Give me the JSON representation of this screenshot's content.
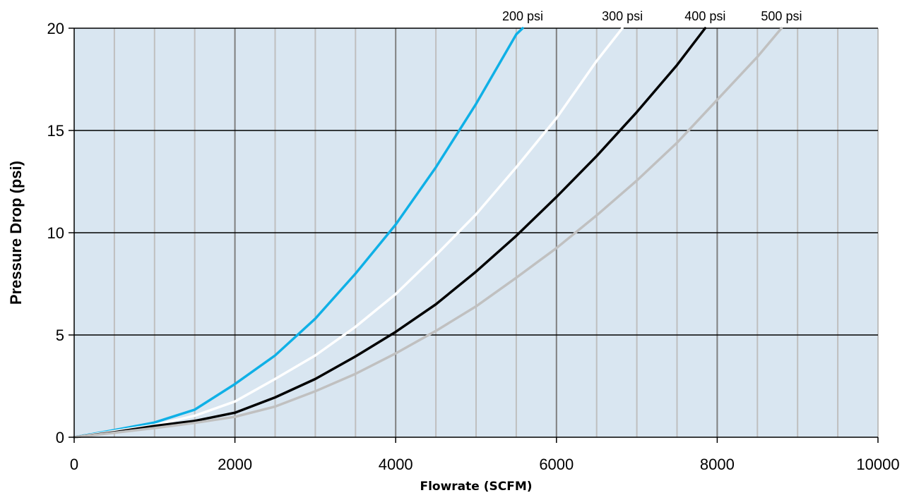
{
  "chart_data": {
    "type": "line",
    "title": "",
    "xlabel": "Flowrate (SCFM)",
    "ylabel": "Pressure Drop (psi)",
    "xlim": [
      0,
      10000
    ],
    "ylim": [
      0,
      20
    ],
    "x_ticks": [
      0,
      2000,
      4000,
      6000,
      8000,
      10000
    ],
    "x_tick_labels": [
      "0",
      "2000",
      "4000",
      "6000",
      "8000",
      "10000"
    ],
    "y_ticks": [
      0,
      5,
      10,
      15,
      20
    ],
    "y_tick_labels": [
      "0",
      "5",
      "10",
      "15",
      "20"
    ],
    "minor_x_gridlines_every": 500,
    "grid": true,
    "plot_background": "#d9e6f1",
    "major_vertical_grid_color": "#7f7f7f",
    "minor_vertical_grid_color": "#bfbfbf",
    "horizontal_grid_color": "#000000",
    "legend": "none",
    "series": [
      {
        "name": "200 psi",
        "color": "#0fb0e6",
        "x": [
          0,
          500,
          1000,
          1500,
          2000,
          2500,
          3000,
          3500,
          4000,
          4500,
          5000,
          5500,
          5580
        ],
        "y": [
          0,
          0.35,
          0.72,
          1.35,
          2.6,
          4.0,
          5.8,
          8.0,
          10.4,
          13.2,
          16.3,
          19.7,
          20
        ]
      },
      {
        "name": "300 psi",
        "color": "#ffffff",
        "x": [
          0,
          500,
          1000,
          1500,
          2000,
          2500,
          3000,
          3500,
          4000,
          4500,
          5000,
          5500,
          6000,
          6500,
          6820
        ],
        "y": [
          0,
          0.3,
          0.6,
          1.05,
          1.75,
          2.85,
          4.0,
          5.4,
          7.0,
          8.9,
          10.9,
          13.2,
          15.6,
          18.4,
          20
        ]
      },
      {
        "name": "400 psi",
        "color": "#000000",
        "x": [
          0,
          500,
          1000,
          1500,
          2000,
          2500,
          3000,
          3500,
          4000,
          4500,
          5000,
          5500,
          6000,
          6500,
          7000,
          7500,
          7850
        ],
        "y": [
          0,
          0.25,
          0.55,
          0.8,
          1.2,
          1.95,
          2.85,
          3.95,
          5.15,
          6.5,
          8.1,
          9.85,
          11.75,
          13.75,
          15.9,
          18.2,
          20
        ]
      },
      {
        "name": "500 psi",
        "color": "#c0c0c0",
        "x": [
          0,
          500,
          1000,
          1500,
          2000,
          2500,
          3000,
          3500,
          4000,
          4500,
          5000,
          5500,
          6000,
          6500,
          7000,
          7500,
          8000,
          8500,
          8800
        ],
        "y": [
          0,
          0.22,
          0.45,
          0.7,
          1.0,
          1.5,
          2.25,
          3.1,
          4.1,
          5.2,
          6.4,
          7.8,
          9.25,
          10.85,
          12.55,
          14.4,
          16.5,
          18.6,
          20
        ]
      }
    ]
  }
}
